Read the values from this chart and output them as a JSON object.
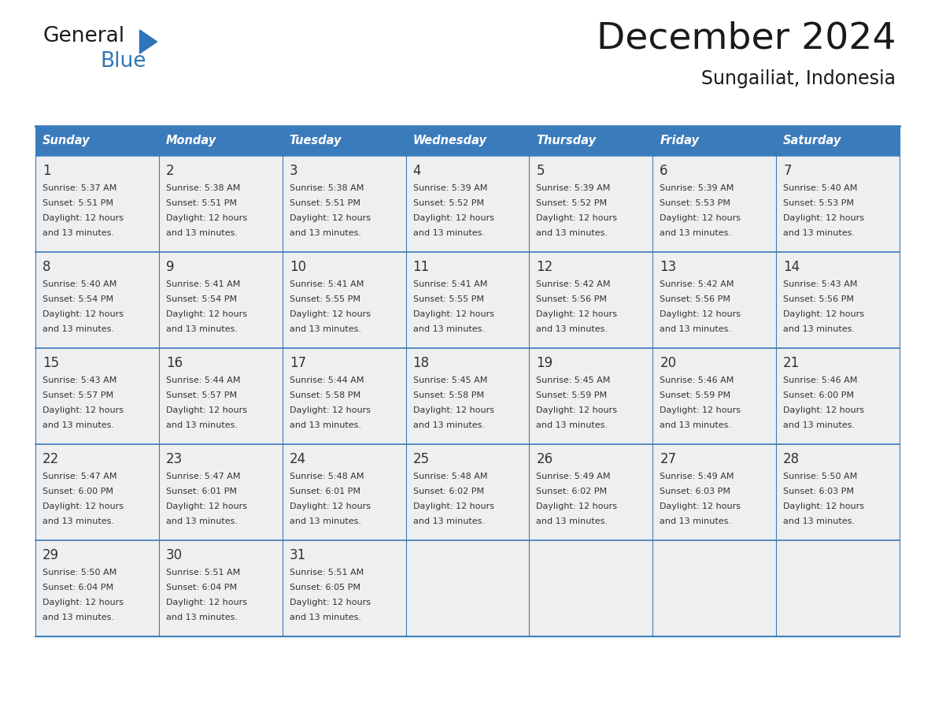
{
  "title": "December 2024",
  "subtitle": "Sungailiat, Indonesia",
  "days_of_week": [
    "Sunday",
    "Monday",
    "Tuesday",
    "Wednesday",
    "Thursday",
    "Friday",
    "Saturday"
  ],
  "header_bg": "#3A7BBB",
  "header_text": "#FFFFFF",
  "cell_bg_light": "#EFEFEF",
  "cell_bg_white": "#FFFFFF",
  "border_color": "#3A7BBB",
  "text_color": "#333333",
  "title_color": "#1A1A1A",
  "blue_color": "#2E75B6",
  "calendar_data": [
    [
      {
        "day": 1,
        "sunrise": "5:37 AM",
        "sunset": "5:51 PM"
      },
      {
        "day": 2,
        "sunrise": "5:38 AM",
        "sunset": "5:51 PM"
      },
      {
        "day": 3,
        "sunrise": "5:38 AM",
        "sunset": "5:51 PM"
      },
      {
        "day": 4,
        "sunrise": "5:39 AM",
        "sunset": "5:52 PM"
      },
      {
        "day": 5,
        "sunrise": "5:39 AM",
        "sunset": "5:52 PM"
      },
      {
        "day": 6,
        "sunrise": "5:39 AM",
        "sunset": "5:53 PM"
      },
      {
        "day": 7,
        "sunrise": "5:40 AM",
        "sunset": "5:53 PM"
      }
    ],
    [
      {
        "day": 8,
        "sunrise": "5:40 AM",
        "sunset": "5:54 PM"
      },
      {
        "day": 9,
        "sunrise": "5:41 AM",
        "sunset": "5:54 PM"
      },
      {
        "day": 10,
        "sunrise": "5:41 AM",
        "sunset": "5:55 PM"
      },
      {
        "day": 11,
        "sunrise": "5:41 AM",
        "sunset": "5:55 PM"
      },
      {
        "day": 12,
        "sunrise": "5:42 AM",
        "sunset": "5:56 PM"
      },
      {
        "day": 13,
        "sunrise": "5:42 AM",
        "sunset": "5:56 PM"
      },
      {
        "day": 14,
        "sunrise": "5:43 AM",
        "sunset": "5:56 PM"
      }
    ],
    [
      {
        "day": 15,
        "sunrise": "5:43 AM",
        "sunset": "5:57 PM"
      },
      {
        "day": 16,
        "sunrise": "5:44 AM",
        "sunset": "5:57 PM"
      },
      {
        "day": 17,
        "sunrise": "5:44 AM",
        "sunset": "5:58 PM"
      },
      {
        "day": 18,
        "sunrise": "5:45 AM",
        "sunset": "5:58 PM"
      },
      {
        "day": 19,
        "sunrise": "5:45 AM",
        "sunset": "5:59 PM"
      },
      {
        "day": 20,
        "sunrise": "5:46 AM",
        "sunset": "5:59 PM"
      },
      {
        "day": 21,
        "sunrise": "5:46 AM",
        "sunset": "6:00 PM"
      }
    ],
    [
      {
        "day": 22,
        "sunrise": "5:47 AM",
        "sunset": "6:00 PM"
      },
      {
        "day": 23,
        "sunrise": "5:47 AM",
        "sunset": "6:01 PM"
      },
      {
        "day": 24,
        "sunrise": "5:48 AM",
        "sunset": "6:01 PM"
      },
      {
        "day": 25,
        "sunrise": "5:48 AM",
        "sunset": "6:02 PM"
      },
      {
        "day": 26,
        "sunrise": "5:49 AM",
        "sunset": "6:02 PM"
      },
      {
        "day": 27,
        "sunrise": "5:49 AM",
        "sunset": "6:03 PM"
      },
      {
        "day": 28,
        "sunrise": "5:50 AM",
        "sunset": "6:03 PM"
      }
    ],
    [
      {
        "day": 29,
        "sunrise": "5:50 AM",
        "sunset": "6:04 PM"
      },
      {
        "day": 30,
        "sunrise": "5:51 AM",
        "sunset": "6:04 PM"
      },
      {
        "day": 31,
        "sunrise": "5:51 AM",
        "sunset": "6:05 PM"
      },
      null,
      null,
      null,
      null
    ]
  ],
  "daylight_line1": "Daylight: 12 hours",
  "daylight_line2": "and 13 minutes."
}
